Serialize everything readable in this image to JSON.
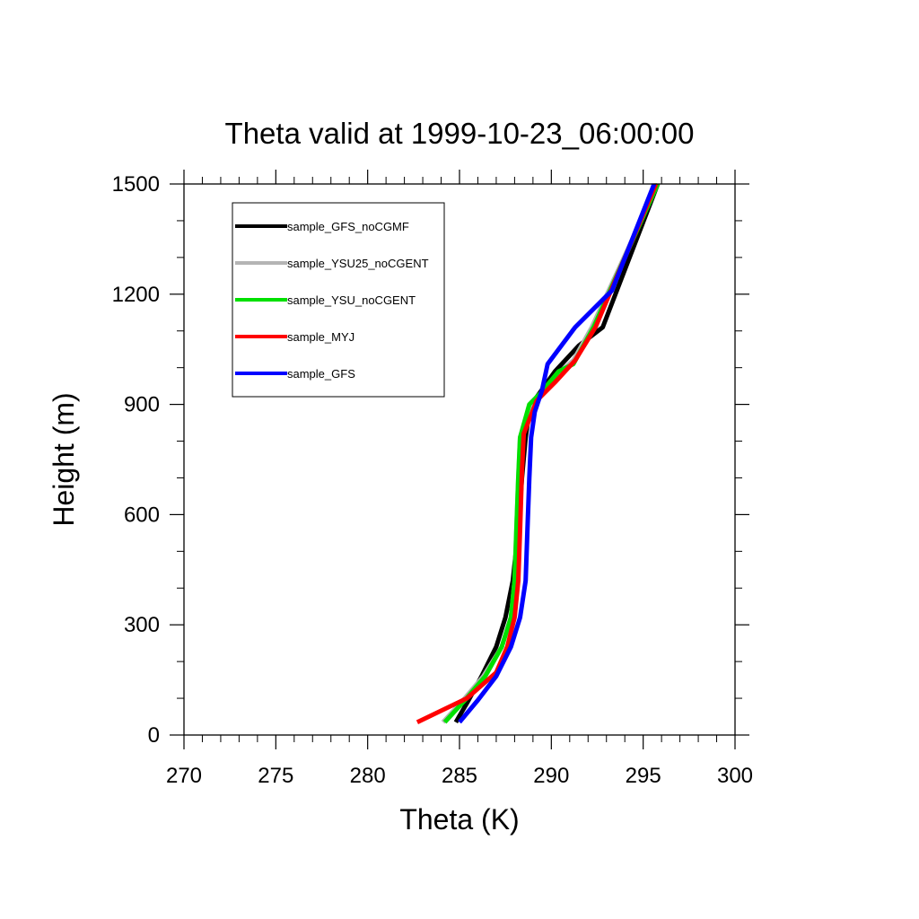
{
  "chart_data": {
    "type": "line",
    "title": "Theta valid at 1999-10-23_06:00:00",
    "xlabel": "Theta (K)",
    "ylabel": "Height (m)",
    "xlim": [
      270,
      300
    ],
    "ylim": [
      0,
      1500
    ],
    "xticks": [
      270,
      275,
      280,
      285,
      290,
      295,
      300
    ],
    "yticks": [
      0,
      300,
      600,
      900,
      1200,
      1500
    ],
    "x_minor_step": 1,
    "y_minor_step": 100,
    "grid": false,
    "legend_position": "top-left",
    "series": [
      {
        "name": "sample_GFS_noCGMF",
        "color": "#000000",
        "x": [
          284.8,
          285.5,
          286.2,
          287.0,
          287.5,
          287.9,
          288.2,
          288.4,
          288.6,
          288.8,
          289.2,
          290.2,
          291.5,
          292.8,
          295.8
        ],
        "y": [
          35,
          95,
          160,
          240,
          320,
          420,
          560,
          700,
          810,
          880,
          920,
          990,
          1060,
          1110,
          1500
        ]
      },
      {
        "name": "sample_YSU25_noCGENT",
        "color": "#b4b4b4",
        "x": [
          284.1,
          285.2,
          286.3,
          287.3,
          287.8,
          288.0,
          288.1,
          288.2,
          288.3,
          288.9,
          289.5,
          290.5,
          291.2,
          292.2,
          295.8
        ],
        "y": [
          35,
          95,
          160,
          240,
          320,
          420,
          560,
          700,
          810,
          900,
          930,
          990,
          1020,
          1110,
          1500
        ]
      },
      {
        "name": "sample_YSU_noCGENT",
        "color": "#00e000",
        "x": [
          284.2,
          285.3,
          286.4,
          287.3,
          287.8,
          288.0,
          288.1,
          288.2,
          288.3,
          288.8,
          289.4,
          290.4,
          291.2,
          292.3,
          295.8
        ],
        "y": [
          35,
          95,
          160,
          240,
          320,
          420,
          560,
          700,
          810,
          900,
          930,
          990,
          1010,
          1110,
          1500
        ]
      },
      {
        "name": "sample_MYJ",
        "color": "#ff0000",
        "x": [
          282.7,
          285.4,
          287.0,
          287.6,
          288.0,
          288.2,
          288.3,
          288.4,
          288.5,
          289.2,
          290.2,
          291.3,
          292.4,
          295.7
        ],
        "y": [
          35,
          100,
          170,
          240,
          320,
          420,
          560,
          720,
          820,
          910,
          960,
          1020,
          1110,
          1500
        ]
      },
      {
        "name": "sample_GFS",
        "color": "#0000ff",
        "x": [
          285.0,
          286.0,
          287.0,
          287.8,
          288.3,
          288.6,
          288.7,
          288.8,
          288.9,
          289.1,
          289.5,
          289.8,
          291.3,
          293.3,
          295.6
        ],
        "y": [
          35,
          95,
          160,
          240,
          320,
          420,
          560,
          700,
          810,
          880,
          940,
          1010,
          1110,
          1210,
          1500
        ]
      }
    ]
  }
}
